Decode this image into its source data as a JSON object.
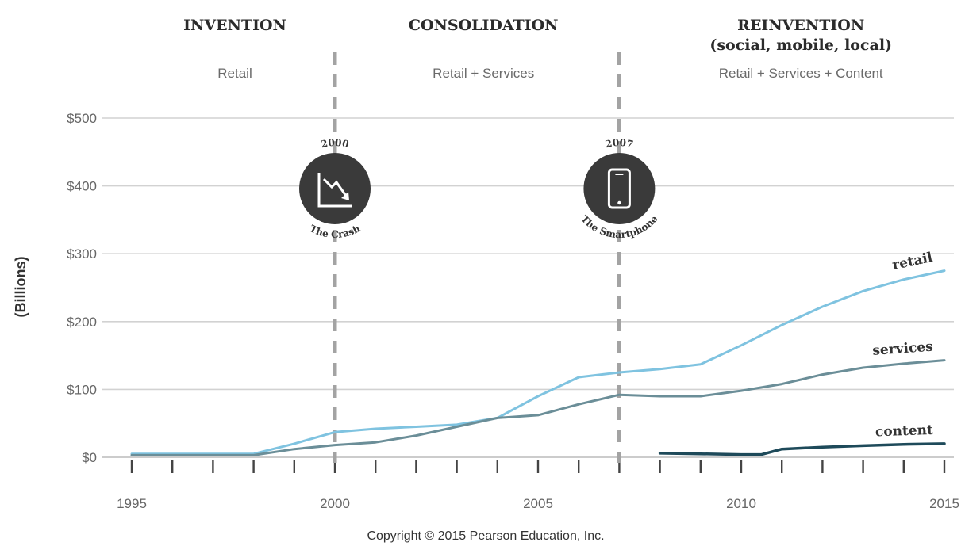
{
  "chart_data": {
    "type": "line",
    "ylabel": "(Billions)",
    "xlim": [
      1995,
      2015
    ],
    "ylim": [
      0,
      500
    ],
    "x_ticks": [
      "1995",
      "2000",
      "2005",
      "2010",
      "2015"
    ],
    "y_ticks": [
      "$0",
      "$100",
      "$200",
      "$300",
      "$400",
      "$500"
    ],
    "grid": true,
    "series": [
      {
        "name": "retail",
        "color": "#7fc3e0",
        "x": [
          1995,
          1996,
          1997,
          1998,
          1999,
          2000,
          2001,
          2002,
          2003,
          2004,
          2005,
          2006,
          2007,
          2008,
          2009,
          2010,
          2011,
          2012,
          2013,
          2014,
          2015
        ],
        "y": [
          5,
          5,
          5,
          5,
          20,
          37,
          42,
          45,
          48,
          58,
          90,
          118,
          125,
          130,
          137,
          165,
          195,
          222,
          245,
          262,
          275
        ]
      },
      {
        "name": "services",
        "color": "#6b8e98",
        "x": [
          1995,
          1996,
          1997,
          1998,
          1999,
          2000,
          2001,
          2002,
          2003,
          2004,
          2005,
          2006,
          2007,
          2008,
          2009,
          2010,
          2011,
          2012,
          2013,
          2014,
          2015
        ],
        "y": [
          3,
          3,
          3,
          3,
          12,
          18,
          22,
          32,
          45,
          58,
          62,
          78,
          92,
          90,
          90,
          98,
          108,
          122,
          132,
          138,
          143
        ]
      },
      {
        "name": "content",
        "color": "#1e4a5a",
        "x": [
          2008,
          2009,
          2010,
          2010.5,
          2011,
          2012,
          2013,
          2014,
          2015
        ],
        "y": [
          6,
          5,
          4,
          4,
          12,
          15,
          17,
          19,
          20
        ]
      }
    ],
    "eras": [
      {
        "title_lines": [
          "INVENTION"
        ],
        "subtitle": "Retail"
      },
      {
        "title_lines": [
          "CONSOLIDATION"
        ],
        "subtitle": "Retail + Services"
      },
      {
        "title_lines": [
          "REINVENTION",
          "(social, mobile, local)"
        ],
        "subtitle": "Retail + Services + Content"
      }
    ],
    "markers": [
      {
        "x": 2000,
        "year": "2000",
        "label": "The Crash",
        "icon": "declining-chart-icon"
      },
      {
        "x": 2007,
        "year": "2007",
        "label": "The Smartphone",
        "icon": "smartphone-icon"
      }
    ],
    "copyright": "Copyright © 2015 Pearson Education, Inc."
  }
}
